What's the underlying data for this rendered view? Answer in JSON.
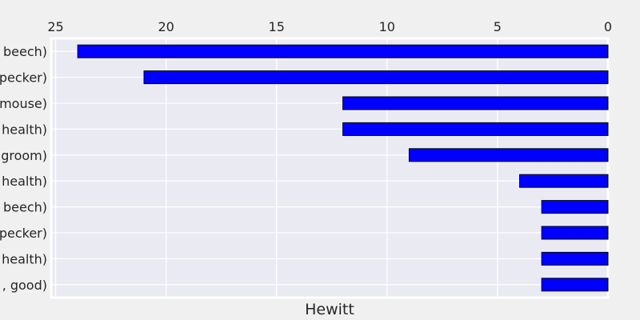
{
  "chart_data": {
    "type": "bar",
    "orientation": "horizontal",
    "x_axis_inverted": true,
    "x_ticks_position": "top",
    "grid": true,
    "xlabel": "Hewitt",
    "ylabel": "",
    "xlim": [
      25.2,
      0
    ],
    "xticks": [
      25,
      20,
      15,
      10,
      5,
      0
    ],
    "categories": [
      "beech)",
      "pecker)",
      "mouse)",
      "health)",
      "groom)",
      "health)",
      "beech)",
      "pecker)",
      "health)",
      ", good)"
    ],
    "values": [
      24,
      21,
      12,
      12,
      9,
      4,
      3,
      3,
      3,
      3
    ],
    "colors": {
      "bar": "#0000ff",
      "bar_edge": "#000000",
      "plot_bg": "#eaeaf2",
      "page_bg": "#f0f0f0",
      "grid": "#ffffff"
    }
  }
}
